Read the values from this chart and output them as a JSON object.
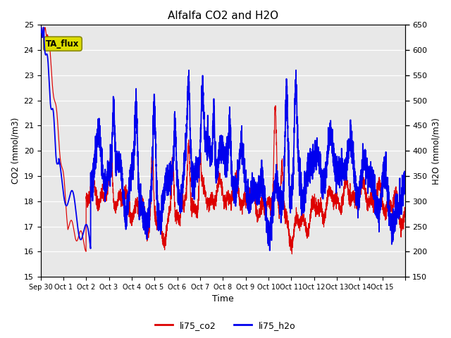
{
  "title": "Alfalfa CO2 and H2O",
  "xlabel": "Time",
  "ylabel_left": "CO2 (mmol/m3)",
  "ylabel_right": "H2O (mmol/m3)",
  "ylim_left": [
    15.0,
    25.0
  ],
  "ylim_right": [
    150,
    650
  ],
  "yticks_left": [
    15.0,
    16.0,
    17.0,
    18.0,
    19.0,
    20.0,
    21.0,
    22.0,
    23.0,
    24.0,
    25.0
  ],
  "yticks_right": [
    150,
    200,
    250,
    300,
    350,
    400,
    450,
    500,
    550,
    600,
    650
  ],
  "color_co2": "#dd0000",
  "color_h2o": "#0000ee",
  "annotation_text": "TA_flux",
  "annotation_bg": "#dddd00",
  "bg_color": "#e8e8e8",
  "legend_labels": [
    "li75_co2",
    "li75_h2o"
  ],
  "xtick_positions": [
    0,
    1,
    2,
    3,
    4,
    5,
    6,
    7,
    8,
    9,
    10,
    11,
    12,
    13,
    14,
    15,
    16
  ],
  "xtick_labels": [
    "Sep 30",
    "Oct 1",
    "Oct 2",
    "Oct 3",
    "Oct 4",
    "Oct 5",
    "Oct 6",
    "Oct 7",
    "Oct 8",
    "Oct 9",
    "Oct 10",
    "Oct 11",
    "Oct 12",
    "Oct 13",
    "Oct 14",
    "Oct 15",
    ""
  ],
  "figsize": [
    6.4,
    4.8
  ],
  "dpi": 100
}
